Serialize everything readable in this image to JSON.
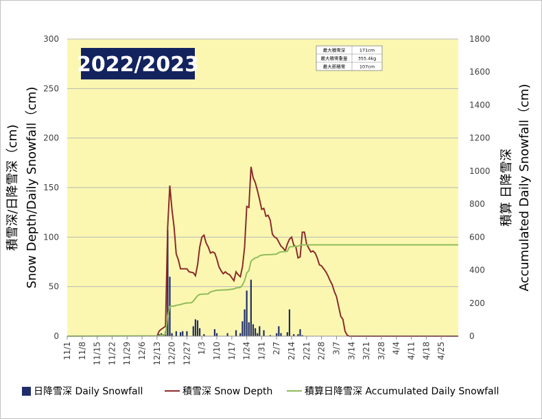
{
  "chart_data": {
    "type": "bar+line",
    "season_label": "2022/2023",
    "ylabel_left_1": "積雪深/日降雪深（cm)",
    "ylabel_left_2": "Snow Depth/Daily Snowfall（cm)",
    "ylabel_right_1": "積算 日降雪深",
    "ylabel_right_2": "Accumulated Daily Snowfall（cm)",
    "ylim_left": [
      0,
      300
    ],
    "ylim_right": [
      0,
      1800
    ],
    "yticks_left": [
      "0",
      "50",
      "100",
      "150",
      "200",
      "250",
      "300"
    ],
    "yticks_right": [
      "0",
      "200",
      "400",
      "600",
      "800",
      "1000",
      "1200",
      "1400",
      "1600",
      "1800"
    ],
    "xticks": [
      "11/1",
      "11/8",
      "11/15",
      "11/22",
      "11/29",
      "12/6",
      "12/13",
      "12/20",
      "12/27",
      "1/3",
      "1/10",
      "1/17",
      "1/24",
      "1/31",
      "2/7",
      "2/14",
      "2/21",
      "2/28",
      "3/7",
      "3/14",
      "3/21",
      "3/28",
      "4/4",
      "4/11",
      "4/18",
      "4/25"
    ],
    "x_days": 183,
    "plot_bg": "#fbf7b1",
    "colors": {
      "snowfall": "#1f2d6b",
      "depth": "#8b2a2a",
      "accumulated": "#8fbc5a",
      "season_box": "#13235e"
    },
    "stats": [
      {
        "label": "最大積雪深",
        "value": "171cm"
      },
      {
        "label": "最大積雪重量",
        "value": "355.4kg"
      },
      {
        "label": "最大新積雪",
        "value": "107cm"
      }
    ],
    "legend": [
      {
        "key": "snowfall",
        "label": "日降雪深 Daily Snowfall"
      },
      {
        "key": "depth",
        "label": "積雪深 Snow Depth"
      },
      {
        "key": "accumulated",
        "label": "積算日降雪深 Accumulated Daily Snowfall"
      }
    ],
    "series": [
      {
        "name": "日降雪深 Daily Snowfall",
        "axis": "left",
        "kind": "bar",
        "points": [
          [
            43,
            2
          ],
          [
            44,
            3
          ],
          [
            45,
            2
          ],
          [
            46,
            5
          ],
          [
            47,
            107
          ],
          [
            48,
            60
          ],
          [
            49,
            3
          ],
          [
            51,
            5
          ],
          [
            53,
            4
          ],
          [
            54,
            5
          ],
          [
            56,
            5
          ],
          [
            59,
            10
          ],
          [
            60,
            17
          ],
          [
            61,
            16
          ],
          [
            62,
            8
          ],
          [
            64,
            2
          ],
          [
            69,
            7
          ],
          [
            70,
            3
          ],
          [
            75,
            3
          ],
          [
            79,
            6
          ],
          [
            81,
            3
          ],
          [
            82,
            15
          ],
          [
            83,
            27
          ],
          [
            84,
            46
          ],
          [
            85,
            14
          ],
          [
            86,
            57
          ],
          [
            87,
            12
          ],
          [
            88,
            8
          ],
          [
            89,
            3
          ],
          [
            90,
            10
          ],
          [
            92,
            6
          ],
          [
            95,
            1
          ],
          [
            98,
            3
          ],
          [
            99,
            10
          ],
          [
            100,
            3
          ],
          [
            103,
            4
          ],
          [
            104,
            27
          ],
          [
            106,
            2
          ],
          [
            108,
            2
          ],
          [
            109,
            7
          ],
          [
            110,
            1
          ]
        ]
      },
      {
        "name": "積雪深 Snow Depth",
        "axis": "left",
        "kind": "line",
        "points": [
          [
            42,
            0
          ],
          [
            43,
            5
          ],
          [
            44,
            7
          ],
          [
            46,
            10
          ],
          [
            47,
            110
          ],
          [
            48,
            152
          ],
          [
            49,
            128
          ],
          [
            50,
            110
          ],
          [
            51,
            83
          ],
          [
            52,
            77
          ],
          [
            53,
            68
          ],
          [
            56,
            68
          ],
          [
            57,
            65
          ],
          [
            59,
            64
          ],
          [
            60,
            61
          ],
          [
            61,
            72
          ],
          [
            62,
            90
          ],
          [
            63,
            100
          ],
          [
            64,
            102
          ],
          [
            65,
            94
          ],
          [
            66,
            90
          ],
          [
            67,
            84
          ],
          [
            68,
            85
          ],
          [
            69,
            84
          ],
          [
            70,
            78
          ],
          [
            71,
            70
          ],
          [
            72,
            66
          ],
          [
            73,
            63
          ],
          [
            74,
            65
          ],
          [
            75,
            63
          ],
          [
            76,
            62
          ],
          [
            77,
            59
          ],
          [
            78,
            56
          ],
          [
            79,
            65
          ],
          [
            80,
            62
          ],
          [
            81,
            60
          ],
          [
            82,
            70
          ],
          [
            83,
            90
          ],
          [
            84,
            131
          ],
          [
            85,
            130
          ],
          [
            86,
            171
          ],
          [
            87,
            160
          ],
          [
            88,
            155
          ],
          [
            89,
            147
          ],
          [
            90,
            138
          ],
          [
            91,
            128
          ],
          [
            92,
            129
          ],
          [
            93,
            121
          ],
          [
            94,
            122
          ],
          [
            95,
            117
          ],
          [
            96,
            103
          ],
          [
            97,
            100
          ],
          [
            98,
            99
          ],
          [
            99,
            95
          ],
          [
            100,
            91
          ],
          [
            101,
            89
          ],
          [
            102,
            86
          ],
          [
            103,
            93
          ],
          [
            104,
            98
          ],
          [
            105,
            100
          ],
          [
            106,
            92
          ],
          [
            107,
            90
          ],
          [
            108,
            79
          ],
          [
            109,
            80
          ],
          [
            110,
            105
          ],
          [
            111,
            105
          ],
          [
            112,
            93
          ],
          [
            113,
            89
          ],
          [
            114,
            85
          ],
          [
            115,
            86
          ],
          [
            116,
            84
          ],
          [
            117,
            79
          ],
          [
            118,
            72
          ],
          [
            119,
            71
          ],
          [
            120,
            68
          ],
          [
            121,
            65
          ],
          [
            122,
            61
          ],
          [
            123,
            56
          ],
          [
            124,
            52
          ],
          [
            125,
            45
          ],
          [
            126,
            40
          ],
          [
            127,
            30
          ],
          [
            128,
            20
          ],
          [
            129,
            17
          ],
          [
            130,
            5
          ],
          [
            131,
            1
          ],
          [
            132,
            0
          ],
          [
            183,
            0
          ]
        ]
      },
      {
        "name": "積算日降雪深 Accumulated Daily Snowfall",
        "axis": "right",
        "kind": "line",
        "points": [
          [
            0,
            0
          ],
          [
            43,
            2
          ],
          [
            44,
            5
          ],
          [
            45,
            7
          ],
          [
            46,
            12
          ],
          [
            47,
            119
          ],
          [
            48,
            179
          ],
          [
            49,
            182
          ],
          [
            50,
            182
          ],
          [
            51,
            187
          ],
          [
            53,
            191
          ],
          [
            54,
            196
          ],
          [
            56,
            201
          ],
          [
            58,
            202
          ],
          [
            59,
            212
          ],
          [
            60,
            229
          ],
          [
            61,
            245
          ],
          [
            62,
            253
          ],
          [
            64,
            255
          ],
          [
            66,
            256
          ],
          [
            67,
            268
          ],
          [
            69,
            275
          ],
          [
            70,
            278
          ],
          [
            75,
            281
          ],
          [
            78,
            286
          ],
          [
            79,
            292
          ],
          [
            81,
            295
          ],
          [
            82,
            310
          ],
          [
            83,
            337
          ],
          [
            84,
            383
          ],
          [
            85,
            397
          ],
          [
            86,
            454
          ],
          [
            87,
            466
          ],
          [
            88,
            474
          ],
          [
            89,
            477
          ],
          [
            90,
            487
          ],
          [
            92,
            493
          ],
          [
            95,
            494
          ],
          [
            98,
            497
          ],
          [
            99,
            507
          ],
          [
            100,
            510
          ],
          [
            103,
            514
          ],
          [
            104,
            541
          ],
          [
            106,
            543
          ],
          [
            108,
            545
          ],
          [
            109,
            552
          ],
          [
            110,
            553
          ],
          [
            183,
            553
          ]
        ]
      }
    ]
  }
}
